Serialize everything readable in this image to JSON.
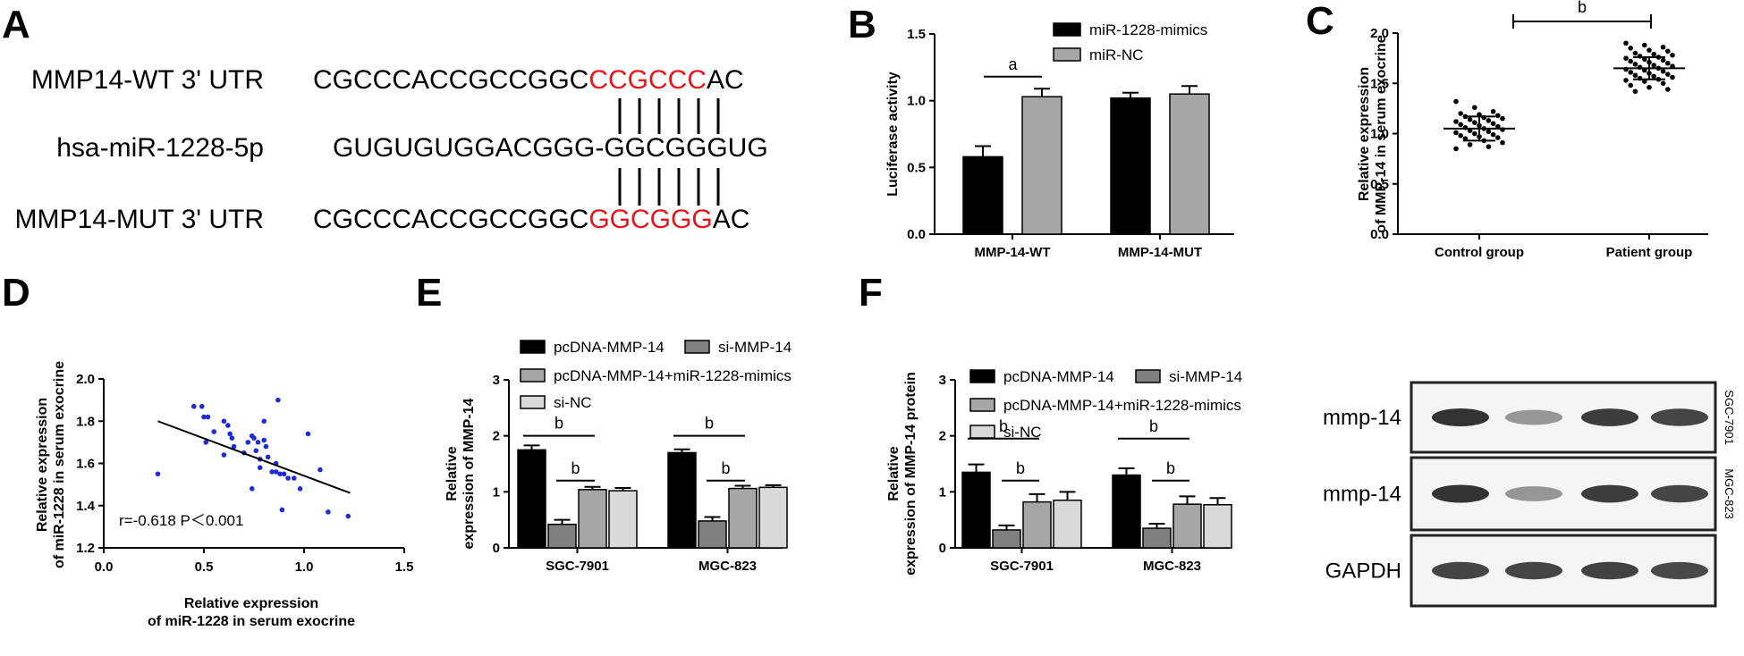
{
  "colors": {
    "black": "#000000",
    "dark_gray": "#7f7f7f",
    "mid_gray": "#a6a6a6",
    "light_gray": "#d9d9d9",
    "red": "#e8141b",
    "blue": "#1f2bd6"
  },
  "panelA": {
    "letter": "A",
    "rows": [
      {
        "label": "MMP14-WT 3' UTR",
        "seq_prefix": "CGCCCACCGCCGGC",
        "seq_highlight": "CCGCCC",
        "seq_suffix": "AC"
      },
      {
        "label": "hsa-miR-1228-5p",
        "seq_prefix": "GUGUGUGGACGGG-GGCGGGUG",
        "seq_highlight": "",
        "seq_suffix": ""
      },
      {
        "label": "MMP14-MUT 3' UTR",
        "seq_prefix": "CGCCCACCGCCGGC",
        "seq_highlight": "GGCGGG",
        "seq_suffix": "AC"
      }
    ]
  },
  "blot": {
    "rows": [
      {
        "label": "mmp-14",
        "side": "SGC-7901",
        "intensities": [
          1.0,
          0.45,
          0.95,
          0.9
        ]
      },
      {
        "label": "mmp-14",
        "side": "MGC-823",
        "intensities": [
          1.0,
          0.45,
          0.95,
          0.9
        ]
      },
      {
        "label": "GAPDH",
        "side": "",
        "intensities": [
          0.9,
          0.9,
          0.92,
          0.88
        ]
      }
    ]
  },
  "chart_data": [
    {
      "panel": "B",
      "type": "bar",
      "ylabel": "Luciferase activity",
      "ylim": [
        0,
        1.5
      ],
      "yticks": [
        "0.0",
        "0.5",
        "1.0",
        "1.5"
      ],
      "categories": [
        "MMP-14-WT",
        "MMP-14-MUT"
      ],
      "series": [
        {
          "name": "miR-1228-mimics",
          "values": [
            0.58,
            1.02
          ],
          "errors": [
            0.08,
            0.04
          ],
          "color": "#000000"
        },
        {
          "name": "miR-NC",
          "values": [
            1.03,
            1.05
          ],
          "errors": [
            0.06,
            0.06
          ],
          "color": "#a6a6a6"
        }
      ],
      "annotations": [
        {
          "text": "a"
        }
      ],
      "legend": "top-right"
    },
    {
      "panel": "C",
      "type": "scatter",
      "ylabel": "Relative expression of MMP-14 in serum exocrine",
      "ylim": [
        0,
        2.0
      ],
      "yticks": [
        "0.0",
        "0.5",
        "1.0",
        "1.5",
        "2.0"
      ],
      "categories": [
        "Control group",
        "Patient group"
      ],
      "series": [
        {
          "name": "Control group",
          "mean": 1.05,
          "sd": 0.12,
          "values": [
            1.32,
            1.26,
            1.22,
            1.2,
            1.19,
            1.18,
            1.17,
            1.16,
            1.15,
            1.14,
            1.13,
            1.12,
            1.11,
            1.1,
            1.09,
            1.08,
            1.07,
            1.06,
            1.05,
            1.04,
            1.03,
            1.02,
            1.01,
            1.0,
            0.99,
            0.98,
            0.97,
            0.96,
            0.95,
            0.93,
            0.91,
            0.89,
            0.87,
            0.85
          ]
        },
        {
          "name": "Patient group",
          "mean": 1.65,
          "sd": 0.11,
          "values": [
            1.9,
            1.88,
            1.86,
            1.85,
            1.83,
            1.82,
            1.8,
            1.79,
            1.78,
            1.77,
            1.76,
            1.75,
            1.74,
            1.73,
            1.72,
            1.71,
            1.7,
            1.69,
            1.68,
            1.67,
            1.66,
            1.65,
            1.64,
            1.63,
            1.62,
            1.61,
            1.6,
            1.59,
            1.58,
            1.57,
            1.56,
            1.55,
            1.54,
            1.53,
            1.52,
            1.5,
            1.48,
            1.46,
            1.44,
            1.42
          ]
        }
      ],
      "annotations": [
        {
          "text": "b"
        }
      ]
    },
    {
      "panel": "D",
      "type": "scatter",
      "xlabel": "Relative expression of miR-1228 in serum exocrine",
      "ylabel": "Relative expression of miR-1228 in serum exocrine",
      "xlim": [
        0.0,
        1.5
      ],
      "ylim": [
        1.2,
        2.0
      ],
      "xticks": [
        "0.0",
        "0.5",
        "1.0",
        "1.5"
      ],
      "yticks": [
        "1.2",
        "1.4",
        "1.6",
        "1.8",
        "2.0"
      ],
      "points": [
        [
          0.27,
          1.55
        ],
        [
          0.45,
          1.87
        ],
        [
          0.49,
          1.87
        ],
        [
          0.5,
          1.82
        ],
        [
          0.52,
          1.82
        ],
        [
          0.51,
          1.7
        ],
        [
          0.55,
          1.75
        ],
        [
          0.6,
          1.8
        ],
        [
          0.62,
          1.78
        ],
        [
          0.63,
          1.74
        ],
        [
          0.64,
          1.72
        ],
        [
          0.6,
          1.64
        ],
        [
          0.65,
          1.68
        ],
        [
          0.7,
          1.65
        ],
        [
          0.72,
          1.7
        ],
        [
          0.74,
          1.73
        ],
        [
          0.75,
          1.72
        ],
        [
          0.76,
          1.66
        ],
        [
          0.77,
          1.7
        ],
        [
          0.78,
          1.62
        ],
        [
          0.78,
          1.58
        ],
        [
          0.8,
          1.71
        ],
        [
          0.81,
          1.68
        ],
        [
          0.82,
          1.63
        ],
        [
          0.84,
          1.56
        ],
        [
          0.86,
          1.56
        ],
        [
          0.87,
          1.9
        ],
        [
          0.88,
          1.55
        ],
        [
          0.9,
          1.55
        ],
        [
          0.92,
          1.53
        ],
        [
          0.95,
          1.53
        ],
        [
          0.98,
          1.48
        ],
        [
          1.02,
          1.74
        ],
        [
          0.74,
          1.48
        ],
        [
          1.08,
          1.57
        ],
        [
          0.8,
          1.8
        ],
        [
          0.86,
          1.6
        ],
        [
          0.89,
          1.38
        ],
        [
          1.12,
          1.37
        ],
        [
          1.22,
          1.35
        ]
      ],
      "regression": {
        "x": [
          0.27,
          1.23
        ],
        "y": [
          1.8,
          1.46
        ]
      },
      "annotation": "r=-0.618 P＜0.001"
    },
    {
      "panel": "E",
      "type": "bar",
      "ylabel": "Relative expression of MMP-14",
      "ylim": [
        0,
        3
      ],
      "yticks": [
        "0",
        "1",
        "2",
        "3"
      ],
      "categories": [
        "SGC-7901",
        "MGC-823"
      ],
      "series": [
        {
          "name": "pcDNA-MMP-14",
          "values": [
            1.75,
            1.7
          ],
          "errors": [
            0.08,
            0.06
          ],
          "color": "#000000"
        },
        {
          "name": "si-MMP-14",
          "values": [
            0.42,
            0.48
          ],
          "errors": [
            0.08,
            0.07
          ],
          "color": "#7f7f7f"
        },
        {
          "name": "pcDNA-MMP-14+miR-1228-mimics",
          "values": [
            1.04,
            1.06
          ],
          "errors": [
            0.05,
            0.05
          ],
          "color": "#a6a6a6"
        },
        {
          "name": "si-NC",
          "values": [
            1.02,
            1.08
          ],
          "errors": [
            0.05,
            0.04
          ],
          "color": "#d9d9d9"
        }
      ],
      "annotations": [
        {
          "text": "b"
        },
        {
          "text": "b"
        },
        {
          "text": "b"
        },
        {
          "text": "b"
        }
      ],
      "legend": "top"
    },
    {
      "panel": "F",
      "type": "bar",
      "ylabel": "Relative expression of MMP-14 protein",
      "ylim": [
        0,
        3
      ],
      "yticks": [
        "0",
        "1",
        "2",
        "3"
      ],
      "categories": [
        "SGC-7901",
        "MGC-823"
      ],
      "series": [
        {
          "name": "pcDNA-MMP-14",
          "values": [
            1.35,
            1.3
          ],
          "errors": [
            0.14,
            0.12
          ],
          "color": "#000000"
        },
        {
          "name": "si-MMP-14",
          "values": [
            0.32,
            0.35
          ],
          "errors": [
            0.08,
            0.08
          ],
          "color": "#7f7f7f"
        },
        {
          "name": "pcDNA-MMP-14+miR-1228-mimics",
          "values": [
            0.82,
            0.78
          ],
          "errors": [
            0.14,
            0.14
          ],
          "color": "#a6a6a6"
        },
        {
          "name": "si-NC",
          "values": [
            0.85,
            0.77
          ],
          "errors": [
            0.15,
            0.12
          ],
          "color": "#d9d9d9"
        }
      ],
      "annotations": [
        {
          "text": "b"
        },
        {
          "text": "b"
        },
        {
          "text": "b"
        },
        {
          "text": "b"
        }
      ],
      "legend": "top"
    }
  ]
}
